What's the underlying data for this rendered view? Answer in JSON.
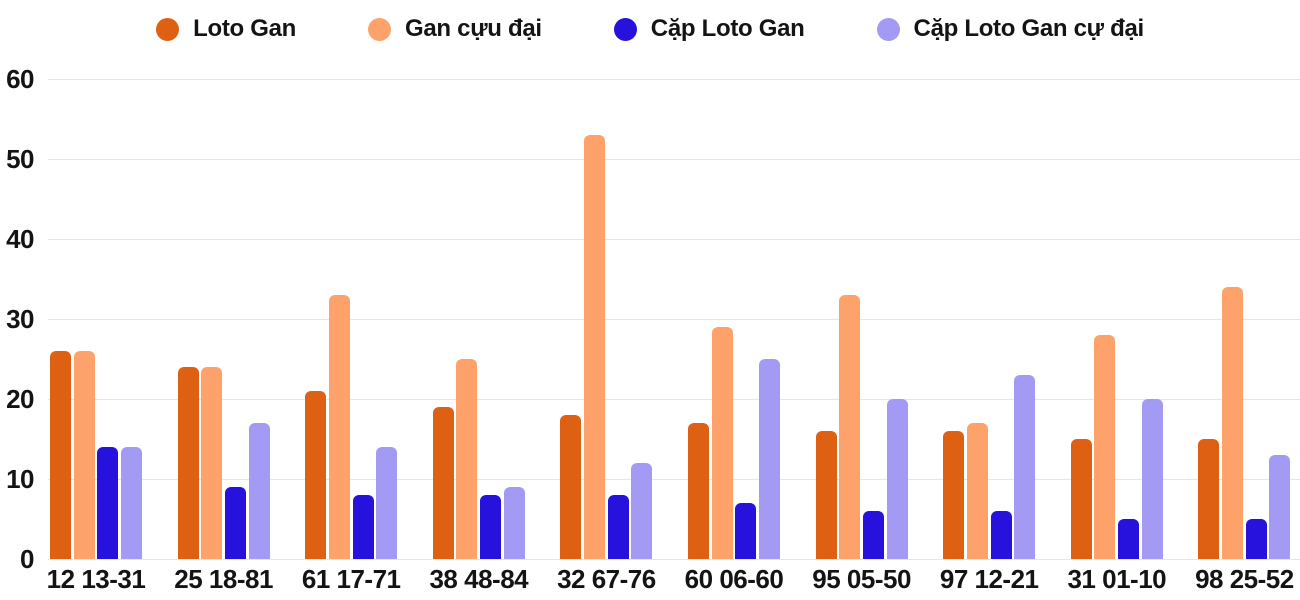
{
  "chart_data": {
    "type": "bar",
    "title": "",
    "xlabel": "",
    "ylabel": "",
    "categories": [
      "12 13-31",
      "25 18-81",
      "61 17-71",
      "38 48-84",
      "32 67-76",
      "60 06-60",
      "95 05-50",
      "97 12-21",
      "31 01-10",
      "98 25-52"
    ],
    "series": [
      {
        "name": "Loto Gan",
        "color": "#dd6013",
        "values": [
          26,
          24,
          21,
          19,
          18,
          17,
          16,
          16,
          15,
          15
        ]
      },
      {
        "name": "Gan cựu đại",
        "color": "#fda26a",
        "values": [
          26,
          24,
          33,
          25,
          53,
          29,
          33,
          17,
          28,
          34
        ]
      },
      {
        "name": "Cặp Loto Gan",
        "color": "#2711dc",
        "values": [
          14,
          9,
          8,
          8,
          8,
          7,
          6,
          6,
          5,
          5
        ]
      },
      {
        "name": "Cặp Loto Gan cự đại",
        "color": "#a29af3",
        "values": [
          14,
          17,
          14,
          9,
          12,
          25,
          20,
          23,
          20,
          13
        ]
      }
    ],
    "ylim": [
      0,
      60
    ],
    "yticks": [
      0,
      10,
      20,
      30,
      40,
      50,
      60
    ],
    "grid": true,
    "legend_position": "top"
  },
  "colors": {
    "background": "#ffffff",
    "gridline": "#e6e6e6",
    "text": "#141414"
  }
}
